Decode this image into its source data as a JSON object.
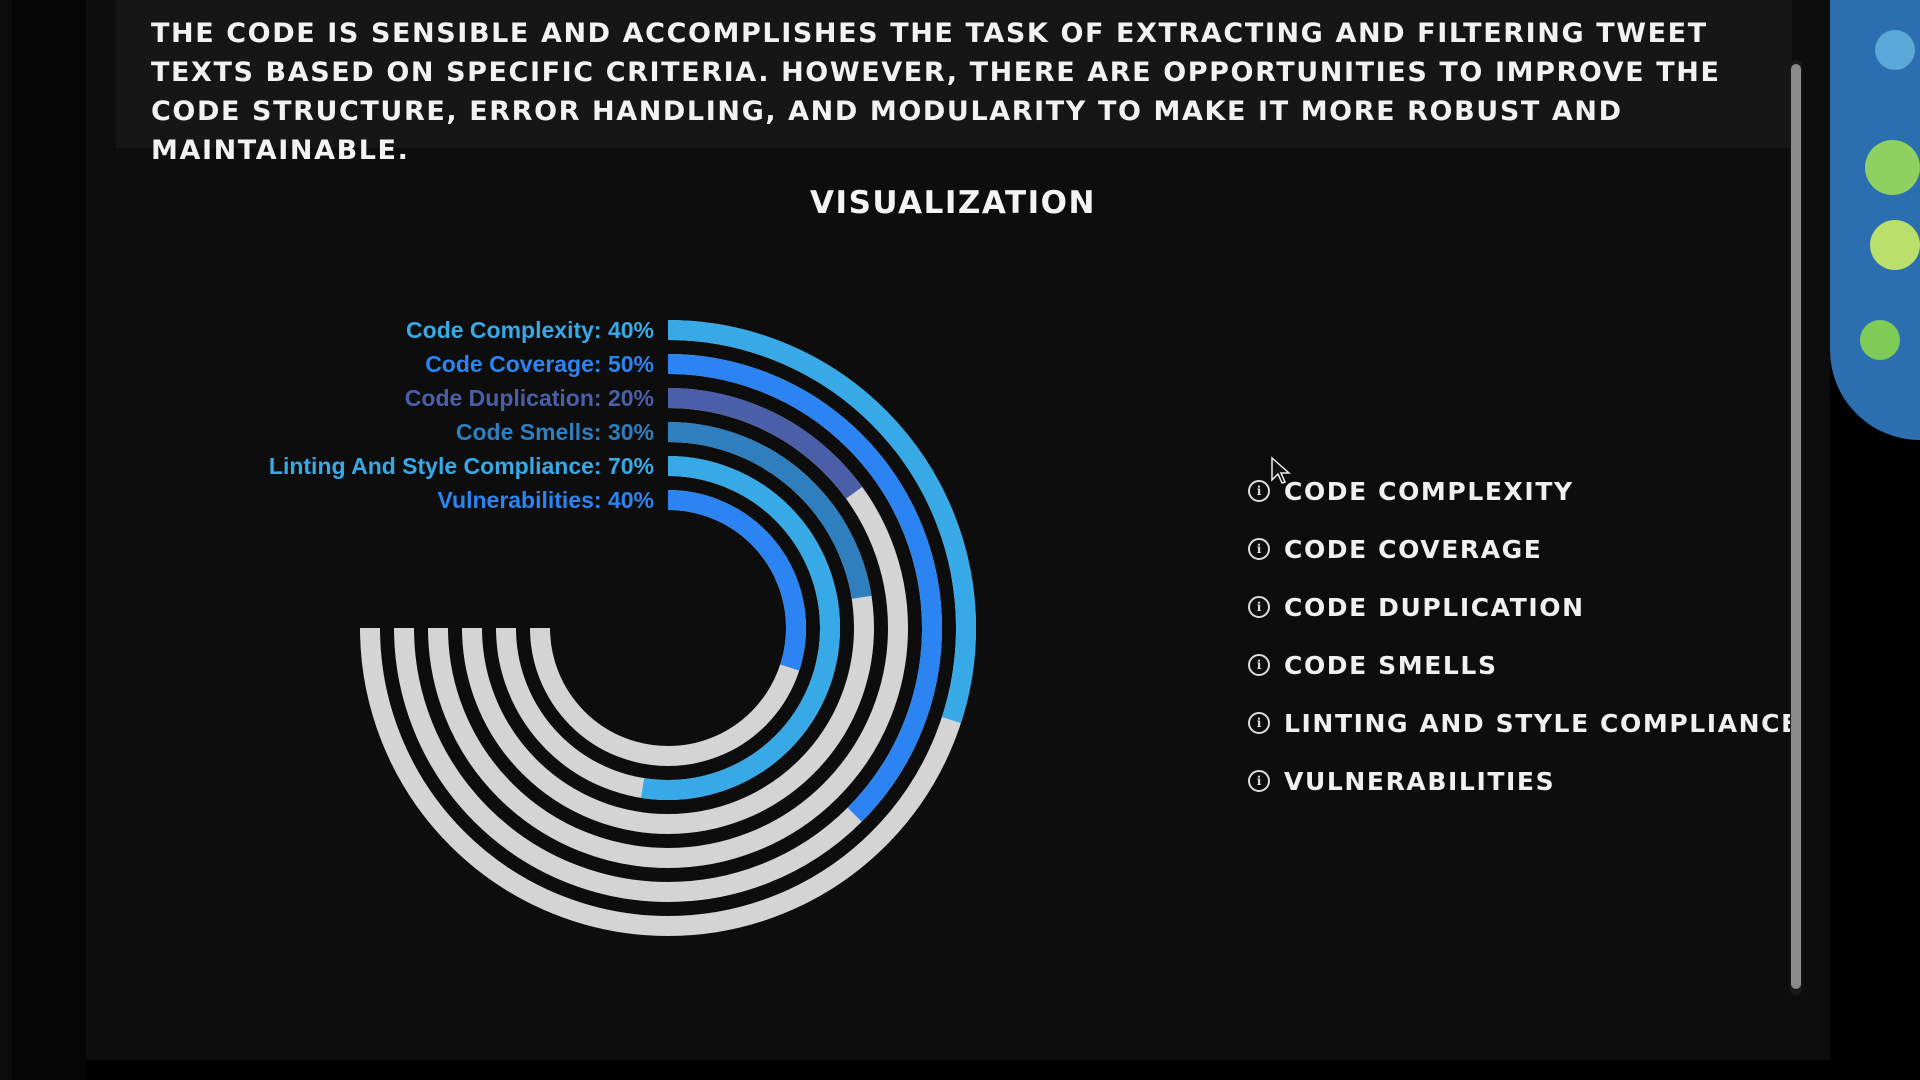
{
  "summary": {
    "text": "The code is sensible and accomplishes the task of extracting and filtering tweet texts based on specific criteria. However, there are opportunities to improve the code structure, error handling, and modularity to make it more robust and maintainable."
  },
  "visualization": {
    "title": "Visualization"
  },
  "chart_data": {
    "type": "radial_bar",
    "unit": "%",
    "max": 100,
    "categories": [
      "Code Complexity",
      "Code Coverage",
      "Code Duplication",
      "Code Smells",
      "Linting And Style Compliance",
      "Vulnerabilities"
    ],
    "values": [
      40,
      50,
      20,
      30,
      70,
      40
    ],
    "colors": [
      "#36a9e6",
      "#2b84f2",
      "#4a5fa8",
      "#2f7fbf",
      "#36a9e6",
      "#2b84f2"
    ],
    "track_color": "#d4d4d4",
    "labels": [
      "Code Complexity: 40%",
      "Code Coverage: 50%",
      "Code Duplication: 20%",
      "Code Smells: 30%",
      "Linting And Style Compliance: 70%",
      "Vulnerabilities: 40%"
    ],
    "legend_position": "right",
    "legend": [
      "Code Complexity",
      "Code Coverage",
      "Code Duplication",
      "Code Smells",
      "Linting And Style Compliance",
      "Vulnerabilities"
    ],
    "legend_icon": "info-icon"
  }
}
